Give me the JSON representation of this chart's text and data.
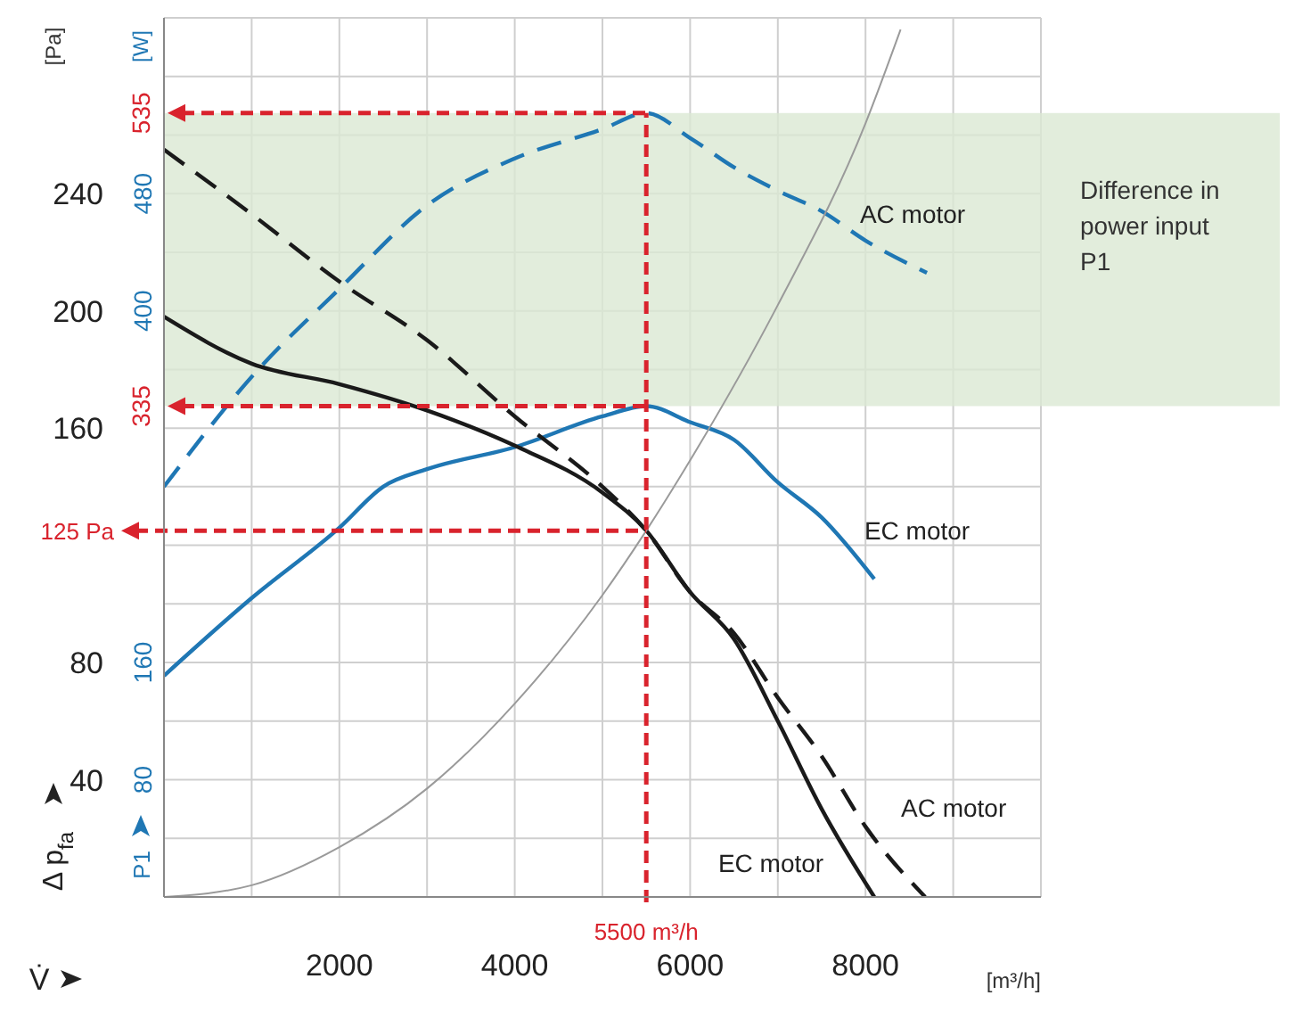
{
  "chart_data": {
    "type": "line",
    "xlabel": "V̇",
    "ylabel": "Δ p$_{fa}$",
    "y2label": "P1",
    "annotations": [
      "[Pa]",
      "[W]",
      "[m³/h]"
    ],
    "xlim": [
      0,
      10000
    ],
    "xticks": [
      {
        "value": 0,
        "label": null
      },
      {
        "value": 1000,
        "label": null
      },
      2000,
      {
        "value": 3000,
        "label": null
      },
      4000,
      {
        "value": 5000,
        "label": null
      },
      6000,
      {
        "value": 7000,
        "label": null
      },
      8000,
      {
        "value": 9000,
        "label": null
      },
      {
        "value": 10000,
        "label": null
      }
    ],
    "ylim": [
      0,
      300
    ],
    "yticks": [
      {
        "value": 0,
        "label": null
      },
      {
        "value": 20,
        "label": null
      },
      40,
      {
        "value": 60,
        "label": null
      },
      80,
      {
        "value": 100,
        "label": null
      },
      {
        "value": 120,
        "label": null
      },
      {
        "value": 140,
        "label": null
      },
      160,
      {
        "value": 180,
        "label": null
      },
      200,
      {
        "value": 220,
        "label": null
      },
      240,
      {
        "value": 260,
        "label": null
      },
      {
        "value": 280,
        "label": null
      },
      {
        "value": 300,
        "label": null
      }
    ],
    "y2lim": [
      0,
      600
    ],
    "y2ticks": [
      80,
      160,
      400,
      480
    ],
    "grid": true,
    "marker": "none",
    "bands": [
      {
        "axis": "y2",
        "from": 335,
        "to": 535,
        "label": "Difference in power input P1",
        "color": "#dbe9d3"
      }
    ],
    "ref_lines": [
      {
        "axis": "y",
        "value": 125,
        "label": "125 Pa",
        "color": "#d9232d",
        "line_style": "dashed"
      },
      {
        "axis": "y2",
        "value": 535,
        "label": "535",
        "color": "#d9232d",
        "line_style": "dashed"
      },
      {
        "axis": "y2",
        "value": 335,
        "label": "335",
        "color": "#d9232d",
        "line_style": "dashed"
      },
      {
        "axis": "x",
        "value": 5500,
        "label": "5500 m³/h",
        "color": "#d9232d",
        "line_style": "dashed"
      }
    ],
    "series": [
      {
        "name": "AC motor",
        "axis": "y2",
        "color": "#1f77b4",
        "line_style": "dashed",
        "x": [
          0,
          1000,
          2000,
          3000,
          4000,
          5000,
          5500,
          6000,
          6500,
          7000,
          7500,
          8000,
          8700
        ],
        "values": [
          280,
          355,
          415,
          472,
          504,
          524,
          535,
          518,
          498,
          482,
          468,
          448,
          426
        ]
      },
      {
        "name": "EC motor",
        "axis": "y2",
        "color": "#1f77b4",
        "line_style": "solid",
        "x": [
          0,
          1000,
          2000,
          2500,
          3000,
          4000,
          5000,
          5500,
          6000,
          6500,
          7000,
          7500,
          8100
        ],
        "values": [
          151,
          204,
          252,
          280,
          292,
          307,
          328,
          335,
          324,
          312,
          283,
          259,
          217
        ]
      },
      {
        "name": "AC motor",
        "color": "#1a1a1a",
        "line_style": "dashed",
        "x": [
          0,
          1000,
          2000,
          3000,
          4000,
          5000,
          5500,
          6000,
          6500,
          7000,
          7500,
          8000,
          8680
        ],
        "values": [
          255,
          233,
          210,
          190,
          164,
          140,
          125,
          104,
          90,
          68,
          48,
          24,
          0
        ]
      },
      {
        "name": "EC motor",
        "color": "#1a1a1a",
        "line_style": "solid",
        "x": [
          0,
          1000,
          2000,
          3000,
          4000,
          5000,
          5500,
          6000,
          6500,
          7000,
          7500,
          8100
        ],
        "values": [
          198,
          182,
          175,
          166,
          154,
          138,
          125,
          104,
          88,
          60,
          30,
          0
        ]
      },
      {
        "color": "#9a9a9a",
        "line_style": "solid",
        "x": [
          0,
          1000,
          2000,
          3000,
          4000,
          5000,
          5500,
          6000,
          7000,
          8000,
          8400
        ],
        "values": [
          0,
          4,
          17,
          37,
          66,
          103,
          125,
          149,
          202,
          264,
          296
        ]
      }
    ]
  }
}
